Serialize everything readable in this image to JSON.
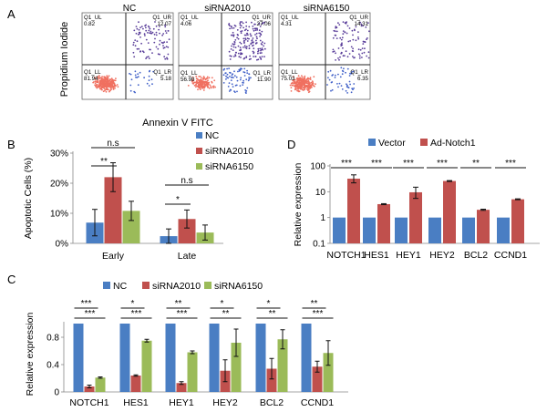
{
  "panel_letters": {
    "A": "A",
    "B": "B",
    "C": "C",
    "D": "D"
  },
  "colors": {
    "blue": "#4A7EC3",
    "red": "#C0504D",
    "green": "#9BBB59",
    "flow_low": "#F07060",
    "flow_high": "#5A3E9A",
    "flow_mid": "#4060C8"
  },
  "chart_data": [
    {
      "id": "A",
      "type": "scatter",
      "xlabel": "Annexin V FITC",
      "ylabel": "Propidium Iodide",
      "plots": [
        {
          "title": "NC",
          "quadrants": {
            "ul_label": "Q1_UL",
            "ul": "0.82",
            "ur_label": "Q1_UR",
            "ur": "12.07",
            "ll_label": "Q1_LL",
            "ll": "81.94",
            "lr_label": "Q1_LR",
            "lr": "5.18"
          }
        },
        {
          "title": "siRNA2010",
          "quadrants": {
            "ul_label": "Q1_UL",
            "ul": "4.06",
            "ur_label": "Q1_UR",
            "ur": "27.06",
            "ll_label": "Q1_LL",
            "ll": "56.98",
            "lr_label": "Q1_LR",
            "lr": "11.90"
          }
        },
        {
          "title": "siRNA6150",
          "quadrants": {
            "ul_label": "Q1_UL",
            "ul": "4.31",
            "ur_label": "Q1_UR",
            "ur": "14.31",
            "ll_label": "Q1_LL",
            "ll": "75.03",
            "lr_label": "Q1_LR",
            "lr": "6.35"
          }
        }
      ]
    },
    {
      "id": "B",
      "type": "bar",
      "ylabel": "Apoptotic Cells (%)",
      "ylim": [
        0,
        30
      ],
      "yticks": [
        0,
        10,
        20,
        30
      ],
      "ytick_labels": [
        "0%",
        "10%",
        "20%",
        "30%"
      ],
      "categories": [
        "Early",
        "Late"
      ],
      "legend_position": "top-right",
      "series": [
        {
          "name": "NC",
          "color": "#4A7EC3",
          "values": [
            6.9,
            2.4
          ],
          "errors": [
            4.4,
            2.4
          ]
        },
        {
          "name": "siRNA2010",
          "color": "#C0504D",
          "values": [
            22.0,
            8.1
          ],
          "errors": [
            4.8,
            3.0
          ]
        },
        {
          "name": "siRNA6150",
          "color": "#9BBB59",
          "values": [
            10.8,
            3.6
          ],
          "errors": [
            3.2,
            2.5
          ]
        }
      ],
      "significance": [
        {
          "label": "**",
          "category": 0,
          "from": 0,
          "to": 1
        },
        {
          "label": "n.s",
          "category": 0,
          "from": 0,
          "to": 2
        },
        {
          "label": "*",
          "category": 1,
          "from": 0,
          "to": 1
        },
        {
          "label": "n.s",
          "category": 1,
          "from": 0,
          "to": 2
        }
      ]
    },
    {
      "id": "C",
      "type": "bar",
      "ylabel": "Relative expression",
      "ylim": [
        0,
        1
      ],
      "yticks": [
        0,
        0.4,
        0.8
      ],
      "ytick_labels": [
        "0",
        "0.4",
        "0.8"
      ],
      "categories": [
        "NOTCH1",
        "HES1",
        "HEY1",
        "HEY2",
        "BCL2",
        "CCND1"
      ],
      "legend_position": "top",
      "series": [
        {
          "name": "NC",
          "color": "#4A7EC3",
          "values": [
            1,
            1,
            1,
            1,
            1,
            1
          ],
          "errors": [
            0,
            0,
            0,
            0,
            0,
            0
          ]
        },
        {
          "name": "siRNA2010",
          "color": "#C0504D",
          "values": [
            0.08,
            0.24,
            0.13,
            0.31,
            0.34,
            0.37
          ],
          "errors": [
            0.02,
            0.01,
            0.02,
            0.16,
            0.15,
            0.08
          ]
        },
        {
          "name": "siRNA6150",
          "color": "#9BBB59",
          "values": [
            0.21,
            0.75,
            0.58,
            0.72,
            0.77,
            0.57
          ],
          "errors": [
            0.01,
            0.02,
            0.02,
            0.2,
            0.14,
            0.18
          ]
        }
      ],
      "significance": [
        [
          "***",
          "***"
        ],
        [
          "*",
          "***"
        ],
        [
          "**",
          "***"
        ],
        [
          "*",
          "**"
        ],
        [
          "*",
          "**"
        ],
        [
          "**",
          "***"
        ]
      ]
    },
    {
      "id": "D",
      "type": "bar",
      "scale": "log",
      "ylabel": "Relative expression",
      "ylim": [
        0.1,
        100
      ],
      "yticks": [
        0.1,
        1,
        10,
        100
      ],
      "ytick_labels": [
        "0.1",
        "1",
        "10",
        "100"
      ],
      "categories": [
        "NOTCH1",
        "HES1",
        "HEY1",
        "HEY2",
        "BCL2",
        "CCND1"
      ],
      "legend_position": "top",
      "series": [
        {
          "name": "Vector",
          "color": "#4A7EC3",
          "values": [
            1,
            1,
            1,
            1,
            1,
            1
          ]
        },
        {
          "name": "Ad-Notch1",
          "color": "#C0504D",
          "values": [
            32,
            3.3,
            9.5,
            26,
            2.0,
            5.1
          ],
          "err_lo": [
            22,
            3.15,
            5.5,
            25,
            1.9,
            4.9
          ],
          "err_hi": [
            45,
            3.45,
            15,
            27,
            2.1,
            5.3
          ]
        }
      ],
      "significance": [
        "***",
        "***",
        "***",
        "***",
        "**",
        "***"
      ]
    }
  ]
}
